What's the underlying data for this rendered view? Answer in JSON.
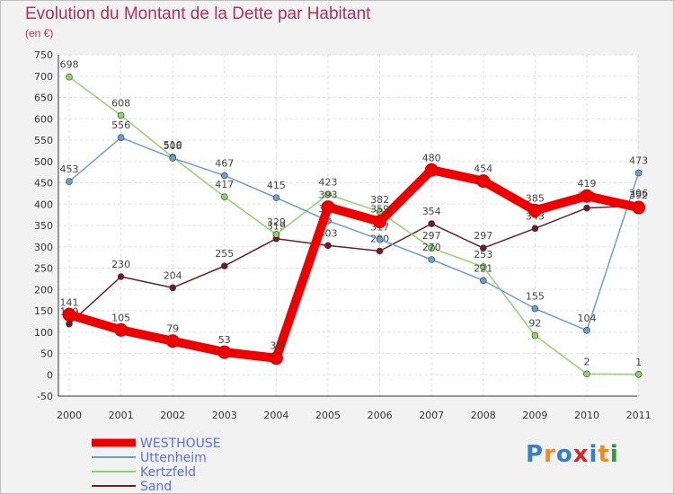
{
  "title": "Evolution du Montant de la Dette par Habitant",
  "subtitle": "(en €)",
  "logo": {
    "text": "Proxiti",
    "colors": [
      "#3a7fc4",
      "#f08a1c",
      "#3a7fc4",
      "#d8262e",
      "#3a7fc4",
      "#f08a1c",
      "#2a9a3a"
    ]
  },
  "chart_data": {
    "type": "line",
    "x": [
      "2000",
      "2001",
      "2002",
      "2003",
      "2004",
      "2005",
      "2006",
      "2007",
      "2008",
      "2009",
      "2010",
      "2011"
    ],
    "ylim": [
      -50,
      750
    ],
    "yticks": [
      -50,
      0,
      50,
      100,
      150,
      200,
      250,
      300,
      350,
      400,
      450,
      500,
      550,
      600,
      650,
      700,
      750
    ],
    "grid": true,
    "legend_position": "bottom-left",
    "series": [
      {
        "name": "Sand",
        "color": "#6b1e2a",
        "values": [
          119,
          230,
          204,
          255,
          319,
          303,
          290,
          354,
          297,
          343,
          391,
          396
        ],
        "labels": [
          "119",
          "230",
          "204",
          "255",
          "319",
          "303",
          "290",
          "354",
          "297",
          "343",
          "391",
          "396"
        ]
      },
      {
        "name": "Kertzfeld",
        "color": "#8fd16a",
        "values": [
          698,
          608,
          510,
          417,
          329,
          423,
          382,
          297,
          253,
          92,
          2,
          1
        ],
        "labels": [
          "698",
          "608",
          "510",
          "417",
          "329",
          "423",
          "382",
          "297",
          "253",
          "92",
          "2",
          "1"
        ]
      },
      {
        "name": "Uttenheim",
        "color": "#6a9fd0",
        "values": [
          453,
          556,
          508,
          467,
          415,
          361,
          317,
          270,
          221,
          155,
          104,
          473
        ],
        "labels": [
          "453",
          "556",
          "508",
          "467",
          "415",
          "361",
          "317",
          "270",
          "221",
          "155",
          "104",
          "473"
        ]
      },
      {
        "name": "WESTHOUSE",
        "color": "#ee0000",
        "values": [
          141,
          105,
          79,
          53,
          39,
          393,
          359,
          480,
          454,
          385,
          419,
          392
        ],
        "labels": [
          "141",
          "105",
          "79",
          "53",
          "39",
          "393",
          "359",
          "480",
          "454",
          "385",
          "419",
          "392"
        ]
      }
    ]
  }
}
